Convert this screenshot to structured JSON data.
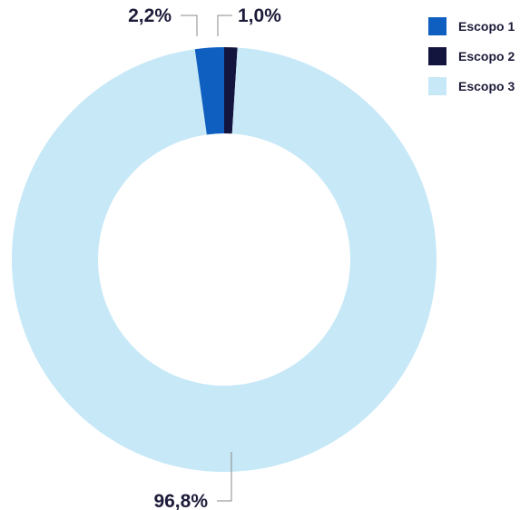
{
  "chart_data": {
    "type": "pie",
    "donut": true,
    "title": "",
    "legend_position": "top-right",
    "slices": [
      {
        "name": "Escopo 1",
        "value": 2.2,
        "label": "2,2%",
        "color": "#0e5fbf"
      },
      {
        "name": "Escopo 2",
        "value": 1.0,
        "label": "1,0%",
        "color": "#14153f"
      },
      {
        "name": "Escopo 3",
        "value": 96.8,
        "label": "96,8%",
        "color": "#c6e8f7"
      }
    ],
    "legend": [
      {
        "label": "Escopo 1",
        "color": "#0e5fbf"
      },
      {
        "label": "Escopo 2",
        "color": "#14153f"
      },
      {
        "label": "Escopo 3",
        "color": "#c6e8f7"
      }
    ]
  }
}
